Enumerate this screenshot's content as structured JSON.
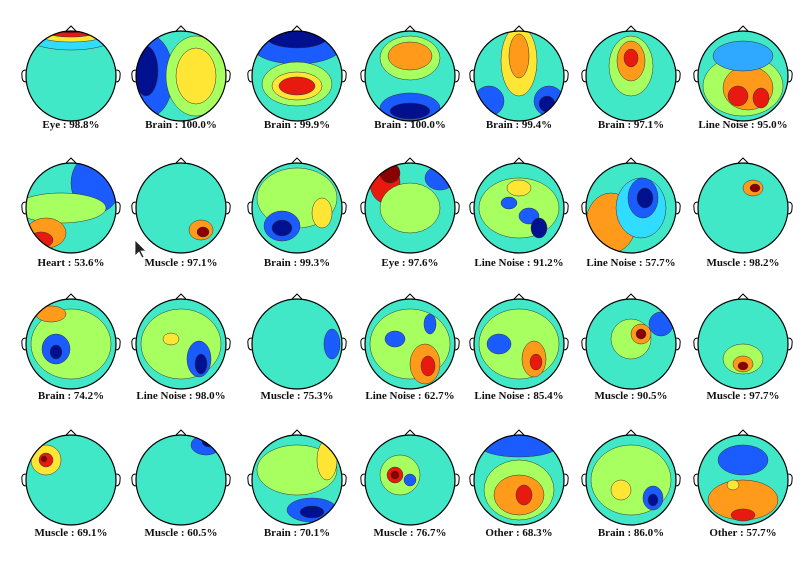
{
  "components": [
    {
      "label": "Eye : 98.8%"
    },
    {
      "label": "Brain : 100.0%"
    },
    {
      "label": "Brain : 99.9%"
    },
    {
      "label": "Brain : 100.0%"
    },
    {
      "label": "Brain : 99.4%"
    },
    {
      "label": "Brain : 97.1%"
    },
    {
      "label": "Line Noise : 95.0%"
    },
    {
      "label": "Heart : 53.6%"
    },
    {
      "label": "Muscle : 97.1%"
    },
    {
      "label": "Brain : 99.3%"
    },
    {
      "label": "Eye : 97.6%"
    },
    {
      "label": "Line Noise : 91.2%"
    },
    {
      "label": "Line Noise : 57.7%"
    },
    {
      "label": "Muscle : 98.2%"
    },
    {
      "label": "Brain : 74.2%"
    },
    {
      "label": "Line Noise : 98.0%"
    },
    {
      "label": "Muscle : 75.3%"
    },
    {
      "label": "Line Noise : 62.7%"
    },
    {
      "label": "Line Noise : 85.4%"
    },
    {
      "label": "Muscle : 90.5%"
    },
    {
      "label": "Muscle : 97.7%"
    },
    {
      "label": "Muscle : 69.1%"
    },
    {
      "label": "Muscle : 60.5%"
    },
    {
      "label": "Brain : 70.1%"
    },
    {
      "label": "Muscle : 76.7%"
    },
    {
      "label": "Other : 68.3%"
    },
    {
      "label": "Brain : 86.0%"
    },
    {
      "label": "Other : 57.7%"
    }
  ]
}
